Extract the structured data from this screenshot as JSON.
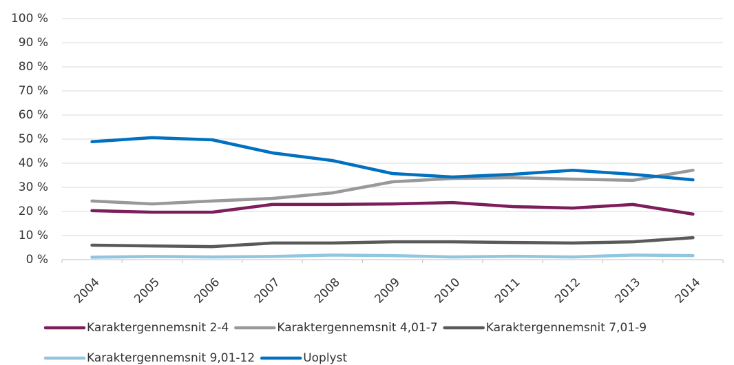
{
  "chart_data": {
    "type": "line",
    "categories": [
      "2004",
      "2005",
      "2006",
      "2007",
      "2008",
      "2009",
      "2010",
      "2011",
      "2012",
      "2013",
      "2014"
    ],
    "series": [
      {
        "name": "Karaktergennemsnit 2-4",
        "color": "#7b1e5a",
        "values": [
          20.3,
          19.7,
          19.7,
          22.9,
          22.9,
          23.1,
          23.7,
          22.0,
          21.4,
          22.9,
          18.9
        ]
      },
      {
        "name": "Karaktergennemsnit 4,01-7",
        "color": "#999999",
        "values": [
          24.3,
          23.1,
          24.3,
          25.4,
          27.7,
          32.3,
          33.7,
          34.0,
          33.4,
          32.9,
          37.1
        ]
      },
      {
        "name": "Karaktergennemsnit 7,01-9",
        "color": "#595959",
        "values": [
          6.0,
          5.7,
          5.4,
          6.9,
          6.9,
          7.4,
          7.4,
          7.1,
          6.9,
          7.4,
          9.1
        ]
      },
      {
        "name": "Karaktergennemsnit 9,01-12",
        "color": "#92c5e0",
        "values": [
          1.0,
          1.3,
          1.1,
          1.3,
          1.9,
          1.7,
          1.1,
          1.4,
          1.1,
          1.9,
          1.7
        ]
      },
      {
        "name": "Uoplyst",
        "color": "#0070c0",
        "values": [
          48.9,
          50.6,
          49.7,
          44.3,
          41.1,
          35.7,
          34.3,
          35.4,
          37.1,
          35.4,
          33.1
        ]
      }
    ],
    "ylim": [
      0,
      100
    ],
    "yticks": [
      {
        "value": 0,
        "label": "0 %"
      },
      {
        "value": 10,
        "label": "10 %"
      },
      {
        "value": 20,
        "label": "20 %"
      },
      {
        "value": 30,
        "label": "30 %"
      },
      {
        "value": 40,
        "label": "40 %"
      },
      {
        "value": 50,
        "label": "50 %"
      },
      {
        "value": 60,
        "label": "60 %"
      },
      {
        "value": 70,
        "label": "70 %"
      },
      {
        "value": 80,
        "label": "80 %"
      },
      {
        "value": 90,
        "label": "90 %"
      },
      {
        "value": 100,
        "label": "100 %"
      }
    ],
    "grid": true,
    "legend": "bottom"
  }
}
